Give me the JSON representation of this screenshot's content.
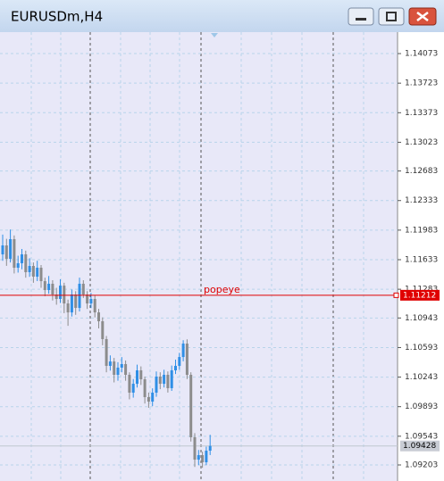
{
  "chart_data": {
    "type": "candlestick",
    "title": "EURUSDm,H4",
    "ylim": [
      1.09013,
      1.14327
    ],
    "yticks": [
      1.14073,
      1.13723,
      1.13373,
      1.13023,
      1.12683,
      1.12333,
      1.11983,
      1.11633,
      1.11283,
      1.10943,
      1.10593,
      1.10243,
      1.09893,
      1.09543,
      1.09203
    ],
    "grid": true,
    "up_color": "#2f8fe6",
    "down_color": "#8c8c8c",
    "hline": {
      "value": 1.11212,
      "label": "popeye",
      "color": "#e00000"
    },
    "bid": 1.09428,
    "ohlc": [
      [
        1.11696,
        1.1193,
        1.1162,
        1.11802
      ],
      [
        1.11802,
        1.1188,
        1.1156,
        1.11643
      ],
      [
        1.11643,
        1.1199,
        1.116,
        1.11876
      ],
      [
        1.11876,
        1.1192,
        1.1147,
        1.11538
      ],
      [
        1.11538,
        1.1168,
        1.1148,
        1.11591
      ],
      [
        1.11591,
        1.1176,
        1.1152,
        1.11696
      ],
      [
        1.11696,
        1.1174,
        1.1142,
        1.11485
      ],
      [
        1.11485,
        1.1165,
        1.1143,
        1.11559
      ],
      [
        1.11559,
        1.116,
        1.1136,
        1.11432
      ],
      [
        1.11432,
        1.1162,
        1.1138,
        1.11538
      ],
      [
        1.11538,
        1.1157,
        1.113,
        1.11379
      ],
      [
        1.11379,
        1.1142,
        1.112,
        1.11274
      ],
      [
        1.11274,
        1.1144,
        1.1123,
        1.11348
      ],
      [
        1.11348,
        1.1139,
        1.1115,
        1.11221
      ],
      [
        1.11221,
        1.113,
        1.111,
        1.11168
      ],
      [
        1.11168,
        1.114,
        1.1112,
        1.11326
      ],
      [
        1.11326,
        1.1136,
        1.11,
        1.11115
      ],
      [
        1.11115,
        1.1116,
        1.1085,
        1.11009
      ],
      [
        1.11009,
        1.1128,
        1.1096,
        1.11221
      ],
      [
        1.11221,
        1.1126,
        1.1098,
        1.11062
      ],
      [
        1.11062,
        1.1142,
        1.1102,
        1.11348
      ],
      [
        1.11348,
        1.1139,
        1.1118,
        1.11221
      ],
      [
        1.11221,
        1.1126,
        1.1105,
        1.11115
      ],
      [
        1.11115,
        1.1124,
        1.1106,
        1.11168
      ],
      [
        1.11168,
        1.1121,
        1.1095,
        1.11009
      ],
      [
        1.11009,
        1.1105,
        1.1082,
        1.10904
      ],
      [
        1.10904,
        1.1095,
        1.1062,
        1.10693
      ],
      [
        1.10693,
        1.1073,
        1.103,
        1.10376
      ],
      [
        1.10376,
        1.105,
        1.1032,
        1.10428
      ],
      [
        1.10428,
        1.1047,
        1.1018,
        1.1027
      ],
      [
        1.1027,
        1.1042,
        1.102,
        1.10355
      ],
      [
        1.10355,
        1.1048,
        1.103,
        1.10397
      ],
      [
        1.10397,
        1.1044,
        1.102,
        1.1027
      ],
      [
        1.1027,
        1.103,
        1.0998,
        1.10059
      ],
      [
        1.10059,
        1.1022,
        1.1,
        1.10164
      ],
      [
        1.10164,
        1.1039,
        1.1012,
        1.10323
      ],
      [
        1.10323,
        1.1037,
        1.1015,
        1.10217
      ],
      [
        1.10217,
        1.1025,
        1.0993,
        1.10006
      ],
      [
        1.10006,
        1.1006,
        1.0988,
        1.09953
      ],
      [
        1.09953,
        1.1011,
        1.099,
        1.10059
      ],
      [
        1.10059,
        1.1031,
        1.1001,
        1.10249
      ],
      [
        1.10249,
        1.103,
        1.101,
        1.10164
      ],
      [
        1.10164,
        1.1033,
        1.1012,
        1.1027
      ],
      [
        1.1027,
        1.1031,
        1.1006,
        1.10112
      ],
      [
        1.10112,
        1.1038,
        1.1008,
        1.10323
      ],
      [
        1.10323,
        1.1045,
        1.1028,
        1.10376
      ],
      [
        1.10376,
        1.1053,
        1.1033,
        1.10481
      ],
      [
        1.10481,
        1.1068,
        1.1043,
        1.1064
      ],
      [
        1.1064,
        1.1069,
        1.1022,
        1.1027
      ],
      [
        1.1027,
        1.103,
        1.0948,
        1.09531
      ],
      [
        1.09531,
        1.0958,
        1.0918,
        1.09266
      ],
      [
        1.09266,
        1.0938,
        1.092,
        1.09319
      ],
      [
        1.09319,
        1.0936,
        1.0917,
        1.09235
      ],
      [
        1.09235,
        1.0942,
        1.092,
        1.09372
      ],
      [
        1.09372,
        1.0956,
        1.0932,
        1.09428
      ]
    ]
  }
}
